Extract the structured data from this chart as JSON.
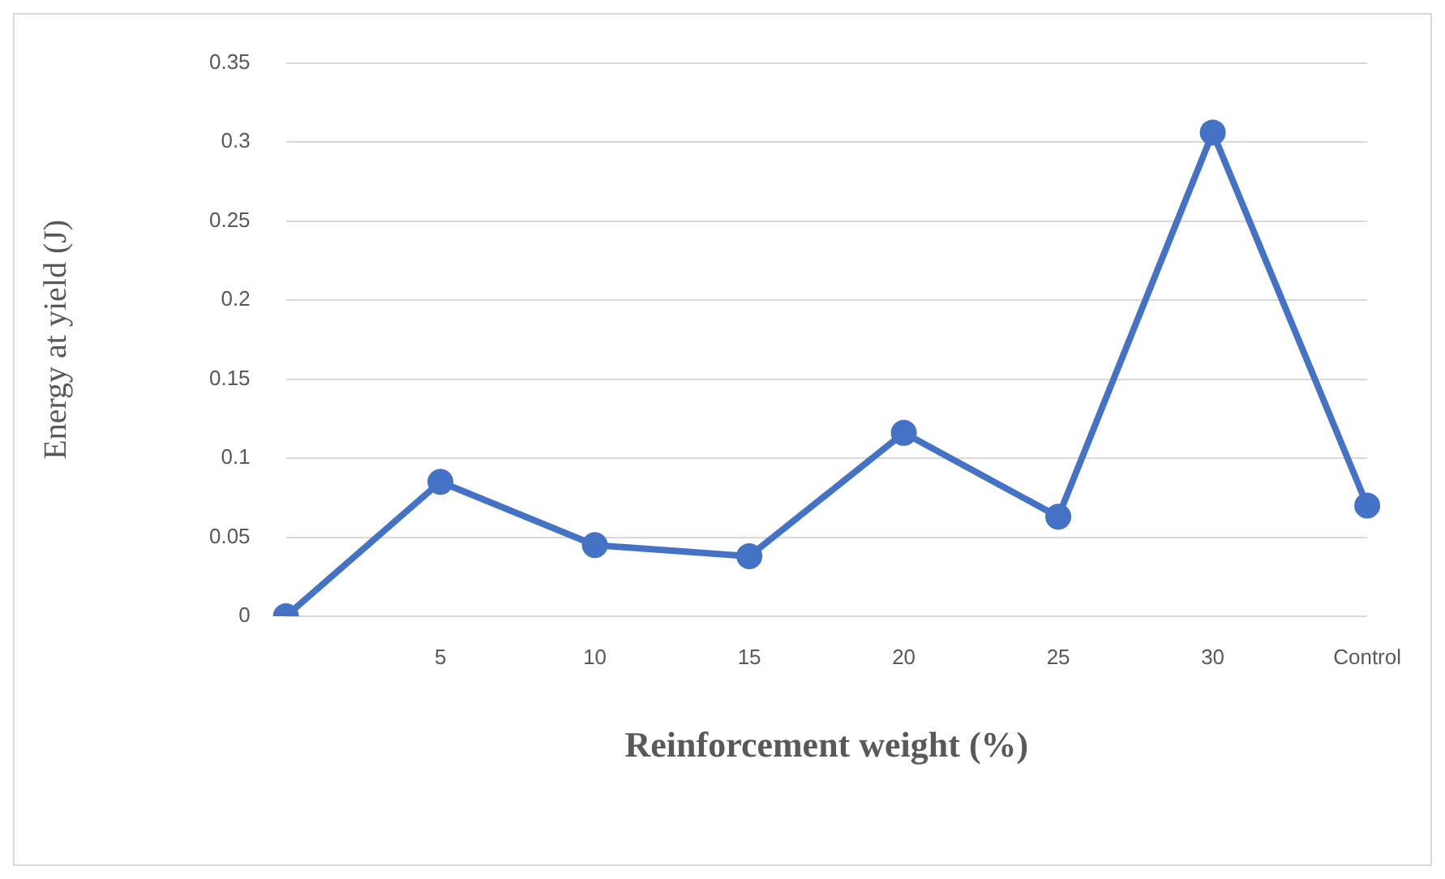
{
  "chart_data": {
    "type": "line",
    "xlabel": "Reinforcement weight (%)",
    "ylabel": "Energy at yield (J)",
    "categories": [
      null,
      "5",
      "10",
      "15",
      "20",
      "25",
      "30",
      "Control"
    ],
    "series": [
      {
        "color": "#4472c4",
        "values": [
          0,
          0.085,
          0.045,
          0.038,
          0.116,
          0.063,
          0.306,
          0.07
        ]
      }
    ],
    "ylim": [
      0,
      0.35
    ],
    "yticks": [
      0,
      0.05,
      0.1,
      0.15,
      0.2,
      0.25,
      0.3,
      0.35
    ],
    "grid": "y",
    "marker": "circle",
    "line_style": "solid",
    "legend": false
  }
}
